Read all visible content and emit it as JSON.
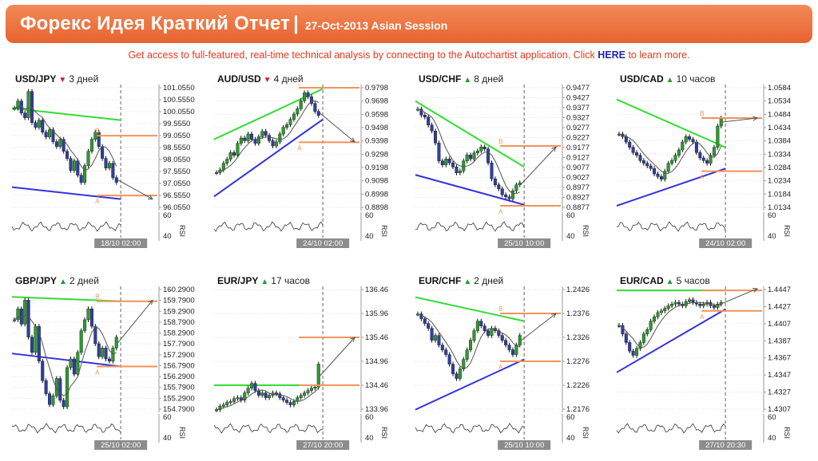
{
  "header": {
    "title": "Форекс Идея Краткий Отчет",
    "separator": "|",
    "subtitle": "27-Oct-2013 Asian Session"
  },
  "promo": {
    "text_before": "Get access to full-featured, real-time technical analysis by connecting to the Autochartist application. Click ",
    "link": "HERE",
    "text_after": " to learn more."
  },
  "colors": {
    "header": "#ec6e3a",
    "support": "#3333dd",
    "resistance": "#33dd33",
    "level": "#f0945a",
    "up": "#1e9e2b",
    "down": "#d0212a"
  },
  "panels": [
    {
      "pair": "USD/JPY",
      "direction": "down",
      "duration": "3 дней",
      "ticks": [
        "101.0550",
        "100.5550",
        "100.0550",
        "99.5550",
        "99.0550",
        "98.5550",
        "98.0550",
        "97.5550",
        "97.0550",
        "96.5550",
        "96.0550"
      ],
      "rsi_ticks": [
        "60",
        "40"
      ],
      "rsi_label": "RSI",
      "date": "18/10 02:00",
      "label_a": "A",
      "label_b": "B",
      "prices": [
        100.2,
        100.5,
        100.0,
        99.8,
        100.9,
        99.6,
        99.4,
        99.7,
        99.2,
        99.0,
        99.3,
        98.8,
        98.6,
        98.9,
        98.4,
        98.1,
        97.6,
        98.0,
        97.4,
        97.1,
        97.8,
        98.4,
        98.9,
        99.2,
        98.6,
        98.1,
        97.7,
        97.9,
        97.3,
        97.1
      ],
      "trend_top": [
        100.2,
        99.7
      ],
      "trend_bottom": [
        96.9,
        96.4
      ],
      "level_a": 96.55,
      "level_b": 99.05,
      "target": 96.4
    },
    {
      "pair": "AUD/USD",
      "direction": "down",
      "duration": "4 дней",
      "ticks": [
        "0.9798",
        "0.9698",
        "0.9598",
        "0.9498",
        "0.9398",
        "0.9298",
        "0.9198",
        "0.9098",
        "0.8998",
        "0.8898"
      ],
      "rsi_ticks": [
        "60",
        "40"
      ],
      "rsi_label": "RSI",
      "date": "24/10 02:00",
      "label_a": "A",
      "label_b": "B",
      "prices": [
        0.916,
        0.918,
        0.923,
        0.926,
        0.931,
        0.929,
        0.938,
        0.942,
        0.94,
        0.945,
        0.941,
        0.938,
        0.943,
        0.947,
        0.944,
        0.94,
        0.936,
        0.939,
        0.945,
        0.95,
        0.952,
        0.956,
        0.96,
        0.964,
        0.97,
        0.976,
        0.973,
        0.968,
        0.962,
        0.959
      ],
      "trend_top": [
        0.941,
        0.979
      ],
      "trend_bottom": [
        0.898,
        0.956
      ],
      "level_a": 0.9388,
      "level_b": 0.9798,
      "target": 0.939
    },
    {
      "pair": "USD/CHF",
      "direction": "up",
      "duration": "8 дней",
      "ticks": [
        "0.9477",
        "0.9427",
        "0.9377",
        "0.9327",
        "0.9277",
        "0.9227",
        "0.9177",
        "0.9127",
        "0.9077",
        "0.9027",
        "0.8977",
        "0.8927",
        "0.8877"
      ],
      "rsi_ticks": [
        "60",
        "40"
      ],
      "rsi_label": "RSI",
      "date": "25/10 10:00",
      "label_a": "A",
      "label_b": "B",
      "prices": [
        0.937,
        0.934,
        0.933,
        0.929,
        0.926,
        0.92,
        0.911,
        0.909,
        0.912,
        0.91,
        0.908,
        0.905,
        0.906,
        0.911,
        0.914,
        0.912,
        0.915,
        0.916,
        0.918,
        0.917,
        0.91,
        0.902,
        0.899,
        0.897,
        0.894,
        0.893,
        0.892,
        0.896,
        0.899,
        0.9
      ],
      "trend_top": [
        0.941,
        0.908
      ],
      "trend_bottom": [
        0.904,
        0.889
      ],
      "level_a": 0.8885,
      "level_b": 0.9185,
      "target": 0.918
    },
    {
      "pair": "USD/CAD",
      "direction": "up",
      "duration": "10 часов",
      "ticks": [
        "1.0584",
        "1.0534",
        "1.0484",
        "1.0434",
        "1.0384",
        "1.0334",
        "1.0284",
        "1.0234",
        "1.0184",
        "1.0134"
      ],
      "rsi_ticks": [
        "60",
        "40"
      ],
      "rsi_label": "RSI",
      "date": "24/10 02:00",
      "label_a": "A",
      "label_b": "B",
      "prices": [
        1.041,
        1.04,
        1.038,
        1.036,
        1.034,
        1.033,
        1.031,
        1.03,
        1.029,
        1.028,
        1.026,
        1.025,
        1.024,
        1.027,
        1.03,
        1.031,
        1.033,
        1.035,
        1.038,
        1.04,
        1.039,
        1.038,
        1.034,
        1.032,
        1.031,
        1.03,
        1.033,
        1.036,
        1.044,
        1.047
      ],
      "trend_top": [
        1.054,
        1.036
      ],
      "trend_bottom": [
        1.014,
        1.028
      ],
      "level_a": 1.027,
      "level_b": 1.047,
      "target": 1.047
    },
    {
      "pair": "GBP/JPY",
      "direction": "up",
      "duration": "2 дней",
      "ticks": [
        "160.2900",
        "159.7900",
        "159.2900",
        "158.7900",
        "158.2900",
        "157.7900",
        "157.2900",
        "156.7900",
        "156.2900",
        "155.7900",
        "155.2900",
        "154.7900"
      ],
      "rsi_ticks": [
        "60",
        "40"
      ],
      "rsi_label": "RSI",
      "date": "25/10 02:00",
      "label_a": "A",
      "label_b": "B",
      "prices": [
        158.9,
        159.4,
        158.7,
        159.8,
        158.1,
        157.4,
        158.6,
        157.0,
        156.1,
        155.5,
        155.0,
        155.4,
        156.2,
        155.2,
        154.9,
        156.7,
        157.1,
        156.4,
        157.4,
        158.4,
        158.9,
        159.4,
        158.6,
        157.8,
        157.2,
        157.6,
        157.1,
        157.0,
        157.6,
        158.1
      ],
      "trend_top": [
        159.95,
        159.75
      ],
      "trend_bottom": [
        157.35,
        156.75
      ],
      "level_a": 156.75,
      "level_b": 159.75,
      "target": 159.8
    },
    {
      "pair": "EUR/JPY",
      "direction": "up",
      "duration": "17 часов",
      "ticks": [
        "136.46",
        "135.96",
        "135.46",
        "134.96",
        "134.46",
        "133.96"
      ],
      "rsi_ticks": [
        "60",
        "40"
      ],
      "rsi_label": "RSI",
      "date": "27/10 20:00",
      "label_a": "",
      "label_b": "",
      "prices": [
        133.95,
        134.02,
        134.05,
        134.1,
        134.12,
        134.18,
        134.2,
        134.15,
        134.3,
        134.4,
        134.5,
        134.35,
        134.25,
        134.3,
        134.2,
        134.25,
        134.3,
        134.28,
        134.2,
        134.15,
        134.1,
        134.05,
        134.12,
        134.2,
        134.25,
        134.3,
        134.35,
        134.4,
        134.42,
        134.9
      ],
      "trend_top": [
        134.46,
        134.46
      ],
      "trend_bottom": [
        null,
        null
      ],
      "level_a": 134.46,
      "level_b": 135.46,
      "target": 135.46
    },
    {
      "pair": "EUR/CHF",
      "direction": "up",
      "duration": "2 дней",
      "ticks": [
        "1.2426",
        "1.2376",
        "1.2326",
        "1.2276",
        "1.2226",
        "1.2176"
      ],
      "rsi_ticks": [
        "60",
        "40"
      ],
      "rsi_label": "RSI",
      "date": "25/10 10:00",
      "label_a": "A",
      "label_b": "B",
      "prices": [
        1.2375,
        1.2365,
        1.2355,
        1.2345,
        1.232,
        1.233,
        1.231,
        1.23,
        1.229,
        1.227,
        1.225,
        1.224,
        1.226,
        1.228,
        1.23,
        1.232,
        1.234,
        1.236,
        1.235,
        1.234,
        1.233,
        1.2345,
        1.234,
        1.233,
        1.232,
        1.231,
        1.23,
        1.229,
        1.231,
        1.233
      ],
      "trend_top": [
        1.241,
        1.236
      ],
      "trend_bottom": [
        1.2175,
        1.228
      ],
      "level_a": 1.2276,
      "level_b": 1.2376,
      "target": 1.2376
    },
    {
      "pair": "EUR/CAD",
      "direction": "up",
      "duration": "5 часов",
      "ticks": [
        "1.4447",
        "1.4427",
        "1.4407",
        "1.4387",
        "1.4367",
        "1.4347",
        "1.4327",
        "1.4307"
      ],
      "rsi_ticks": [
        "60",
        "40"
      ],
      "rsi_label": "RSI",
      "date": "27/10 20:30",
      "label_a": "A",
      "label_b": "",
      "prices": [
        1.4405,
        1.4395,
        1.4385,
        1.4375,
        1.437,
        1.4378,
        1.4385,
        1.4395,
        1.44,
        1.441,
        1.4415,
        1.442,
        1.4422,
        1.4425,
        1.4428,
        1.443,
        1.4432,
        1.443,
        1.4428,
        1.4433,
        1.4435,
        1.4432,
        1.443,
        1.4428,
        1.443,
        1.4432,
        1.4428,
        1.4426,
        1.443,
        1.4432
      ],
      "trend_top": [
        1.4446,
        1.4446
      ],
      "trend_bottom": [
        1.435,
        1.4424
      ],
      "level_a": 1.4422,
      "level_b": 1.4446,
      "target": 1.4448
    }
  ]
}
